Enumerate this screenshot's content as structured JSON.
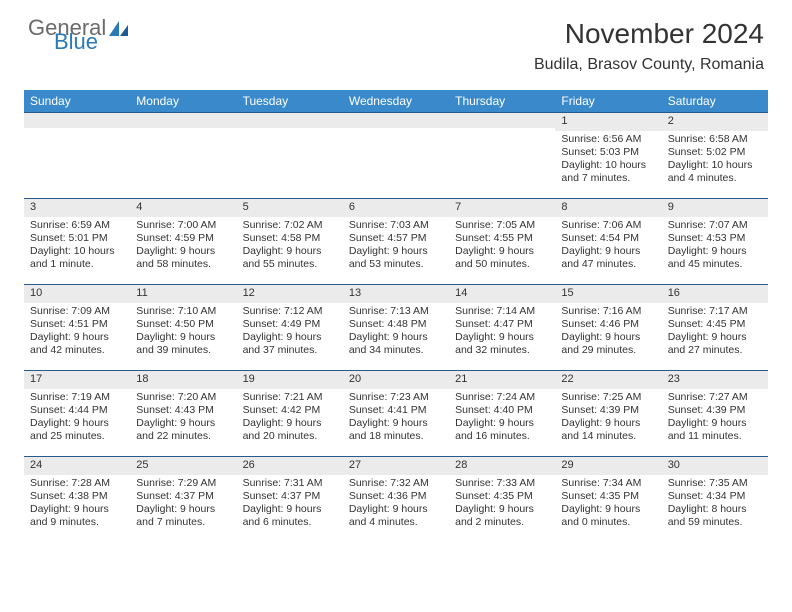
{
  "logo": {
    "word1": "General",
    "word2": "Blue"
  },
  "header": {
    "title": "November 2024",
    "location": "Budila, Brasov County, Romania"
  },
  "colors": {
    "header_bg": "#3a8acb",
    "header_text": "#ffffff",
    "daynum_bg": "#ebebeb",
    "daynum_border": "#2a5a8a",
    "text": "#333333",
    "logo_gray": "#6b6b6b",
    "logo_blue": "#2a7ab8"
  },
  "fonts": {
    "month_title_pt": 28,
    "location_pt": 16,
    "dayheader_pt": 12,
    "cell_pt": 10.5
  },
  "week_headers": [
    "Sunday",
    "Monday",
    "Tuesday",
    "Wednesday",
    "Thursday",
    "Friday",
    "Saturday"
  ],
  "weeks": [
    [
      null,
      null,
      null,
      null,
      null,
      {
        "n": "1",
        "sunrise": "Sunrise: 6:56 AM",
        "sunset": "Sunset: 5:03 PM",
        "daylight": "Daylight: 10 hours and 7 minutes."
      },
      {
        "n": "2",
        "sunrise": "Sunrise: 6:58 AM",
        "sunset": "Sunset: 5:02 PM",
        "daylight": "Daylight: 10 hours and 4 minutes."
      }
    ],
    [
      {
        "n": "3",
        "sunrise": "Sunrise: 6:59 AM",
        "sunset": "Sunset: 5:01 PM",
        "daylight": "Daylight: 10 hours and 1 minute."
      },
      {
        "n": "4",
        "sunrise": "Sunrise: 7:00 AM",
        "sunset": "Sunset: 4:59 PM",
        "daylight": "Daylight: 9 hours and 58 minutes."
      },
      {
        "n": "5",
        "sunrise": "Sunrise: 7:02 AM",
        "sunset": "Sunset: 4:58 PM",
        "daylight": "Daylight: 9 hours and 55 minutes."
      },
      {
        "n": "6",
        "sunrise": "Sunrise: 7:03 AM",
        "sunset": "Sunset: 4:57 PM",
        "daylight": "Daylight: 9 hours and 53 minutes."
      },
      {
        "n": "7",
        "sunrise": "Sunrise: 7:05 AM",
        "sunset": "Sunset: 4:55 PM",
        "daylight": "Daylight: 9 hours and 50 minutes."
      },
      {
        "n": "8",
        "sunrise": "Sunrise: 7:06 AM",
        "sunset": "Sunset: 4:54 PM",
        "daylight": "Daylight: 9 hours and 47 minutes."
      },
      {
        "n": "9",
        "sunrise": "Sunrise: 7:07 AM",
        "sunset": "Sunset: 4:53 PM",
        "daylight": "Daylight: 9 hours and 45 minutes."
      }
    ],
    [
      {
        "n": "10",
        "sunrise": "Sunrise: 7:09 AM",
        "sunset": "Sunset: 4:51 PM",
        "daylight": "Daylight: 9 hours and 42 minutes."
      },
      {
        "n": "11",
        "sunrise": "Sunrise: 7:10 AM",
        "sunset": "Sunset: 4:50 PM",
        "daylight": "Daylight: 9 hours and 39 minutes."
      },
      {
        "n": "12",
        "sunrise": "Sunrise: 7:12 AM",
        "sunset": "Sunset: 4:49 PM",
        "daylight": "Daylight: 9 hours and 37 minutes."
      },
      {
        "n": "13",
        "sunrise": "Sunrise: 7:13 AM",
        "sunset": "Sunset: 4:48 PM",
        "daylight": "Daylight: 9 hours and 34 minutes."
      },
      {
        "n": "14",
        "sunrise": "Sunrise: 7:14 AM",
        "sunset": "Sunset: 4:47 PM",
        "daylight": "Daylight: 9 hours and 32 minutes."
      },
      {
        "n": "15",
        "sunrise": "Sunrise: 7:16 AM",
        "sunset": "Sunset: 4:46 PM",
        "daylight": "Daylight: 9 hours and 29 minutes."
      },
      {
        "n": "16",
        "sunrise": "Sunrise: 7:17 AM",
        "sunset": "Sunset: 4:45 PM",
        "daylight": "Daylight: 9 hours and 27 minutes."
      }
    ],
    [
      {
        "n": "17",
        "sunrise": "Sunrise: 7:19 AM",
        "sunset": "Sunset: 4:44 PM",
        "daylight": "Daylight: 9 hours and 25 minutes."
      },
      {
        "n": "18",
        "sunrise": "Sunrise: 7:20 AM",
        "sunset": "Sunset: 4:43 PM",
        "daylight": "Daylight: 9 hours and 22 minutes."
      },
      {
        "n": "19",
        "sunrise": "Sunrise: 7:21 AM",
        "sunset": "Sunset: 4:42 PM",
        "daylight": "Daylight: 9 hours and 20 minutes."
      },
      {
        "n": "20",
        "sunrise": "Sunrise: 7:23 AM",
        "sunset": "Sunset: 4:41 PM",
        "daylight": "Daylight: 9 hours and 18 minutes."
      },
      {
        "n": "21",
        "sunrise": "Sunrise: 7:24 AM",
        "sunset": "Sunset: 4:40 PM",
        "daylight": "Daylight: 9 hours and 16 minutes."
      },
      {
        "n": "22",
        "sunrise": "Sunrise: 7:25 AM",
        "sunset": "Sunset: 4:39 PM",
        "daylight": "Daylight: 9 hours and 14 minutes."
      },
      {
        "n": "23",
        "sunrise": "Sunrise: 7:27 AM",
        "sunset": "Sunset: 4:39 PM",
        "daylight": "Daylight: 9 hours and 11 minutes."
      }
    ],
    [
      {
        "n": "24",
        "sunrise": "Sunrise: 7:28 AM",
        "sunset": "Sunset: 4:38 PM",
        "daylight": "Daylight: 9 hours and 9 minutes."
      },
      {
        "n": "25",
        "sunrise": "Sunrise: 7:29 AM",
        "sunset": "Sunset: 4:37 PM",
        "daylight": "Daylight: 9 hours and 7 minutes."
      },
      {
        "n": "26",
        "sunrise": "Sunrise: 7:31 AM",
        "sunset": "Sunset: 4:37 PM",
        "daylight": "Daylight: 9 hours and 6 minutes."
      },
      {
        "n": "27",
        "sunrise": "Sunrise: 7:32 AM",
        "sunset": "Sunset: 4:36 PM",
        "daylight": "Daylight: 9 hours and 4 minutes."
      },
      {
        "n": "28",
        "sunrise": "Sunrise: 7:33 AM",
        "sunset": "Sunset: 4:35 PM",
        "daylight": "Daylight: 9 hours and 2 minutes."
      },
      {
        "n": "29",
        "sunrise": "Sunrise: 7:34 AM",
        "sunset": "Sunset: 4:35 PM",
        "daylight": "Daylight: 9 hours and 0 minutes."
      },
      {
        "n": "30",
        "sunrise": "Sunrise: 7:35 AM",
        "sunset": "Sunset: 4:34 PM",
        "daylight": "Daylight: 8 hours and 59 minutes."
      }
    ]
  ]
}
